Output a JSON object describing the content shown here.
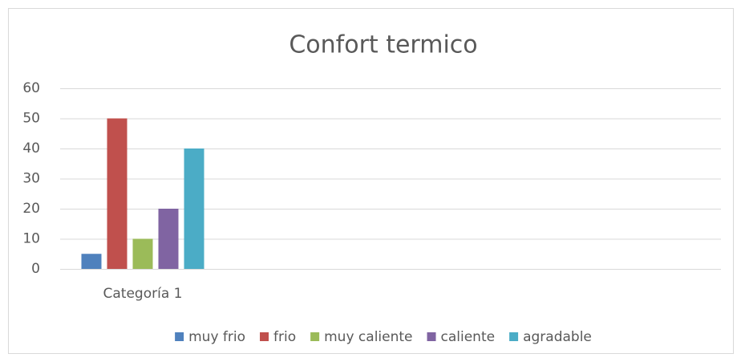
{
  "chart_data": {
    "type": "bar",
    "title": "Confort termico",
    "categories": [
      "Categoría 1",
      null,
      null,
      null
    ],
    "series": [
      {
        "name": "muy frio",
        "color": "#4f81bd",
        "values": [
          5,
          null,
          null,
          null
        ]
      },
      {
        "name": "frio",
        "color": "#c0504d",
        "values": [
          50,
          null,
          null,
          null
        ]
      },
      {
        "name": "muy caliente",
        "color": "#9bbb59",
        "values": [
          10,
          null,
          null,
          null
        ]
      },
      {
        "name": "caliente",
        "color": "#8064a2",
        "values": [
          20,
          null,
          null,
          null
        ]
      },
      {
        "name": "agradable",
        "color": "#4bacc6",
        "values": [
          40,
          null,
          null,
          null
        ]
      }
    ],
    "ylim": [
      0,
      60
    ],
    "yticks": [
      0,
      10,
      20,
      30,
      40,
      50,
      60
    ],
    "grid": true,
    "legend": "bottom"
  }
}
